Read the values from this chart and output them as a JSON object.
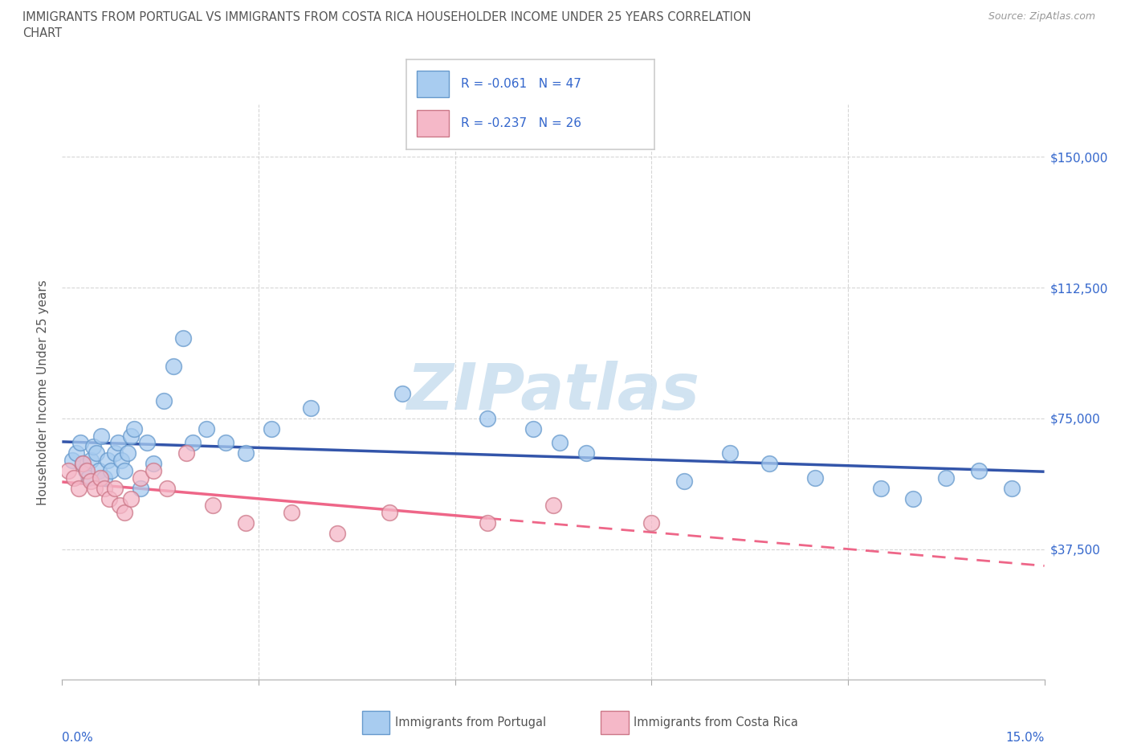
{
  "title_line1": "IMMIGRANTS FROM PORTUGAL VS IMMIGRANTS FROM COSTA RICA HOUSEHOLDER INCOME UNDER 25 YEARS CORRELATION",
  "title_line2": "CHART",
  "source": "Source: ZipAtlas.com",
  "ylabel": "Householder Income Under 25 years",
  "xlim": [
    0.0,
    15.0
  ],
  "ylim": [
    0,
    165000
  ],
  "yticks": [
    37500,
    75000,
    112500,
    150000
  ],
  "ytick_labels": [
    "$37,500",
    "$75,000",
    "$112,500",
    "$150,000"
  ],
  "legend1_text": "R = -0.061   N = 47",
  "legend2_text": "R = -0.237   N = 26",
  "portugal_scatter_color": "#a8ccf0",
  "portugal_scatter_edge": "#6699cc",
  "portugal_line_color": "#3355aa",
  "costa_rica_scatter_color": "#f5b8c8",
  "costa_rica_scatter_edge": "#cc7788",
  "costa_rica_line_color": "#ee6688",
  "grid_color": "#cccccc",
  "label_color": "#3366cc",
  "text_color": "#555555",
  "watermark_color": "#cce0f0",
  "portugal_x": [
    0.15,
    0.22,
    0.28,
    0.32,
    0.36,
    0.4,
    0.44,
    0.48,
    0.52,
    0.56,
    0.6,
    0.65,
    0.7,
    0.75,
    0.8,
    0.85,
    0.9,
    0.95,
    1.0,
    1.05,
    1.1,
    1.2,
    1.3,
    1.4,
    1.55,
    1.7,
    1.85,
    2.0,
    2.2,
    2.5,
    2.8,
    3.2,
    3.8,
    5.2,
    6.5,
    7.2,
    7.6,
    8.0,
    9.5,
    10.2,
    10.8,
    11.5,
    12.5,
    13.0,
    13.5,
    14.0,
    14.5
  ],
  "portugal_y": [
    63000,
    65000,
    68000,
    62000,
    60000,
    58000,
    63000,
    67000,
    65000,
    60000,
    70000,
    58000,
    63000,
    60000,
    65000,
    68000,
    63000,
    60000,
    65000,
    70000,
    72000,
    55000,
    68000,
    62000,
    80000,
    90000,
    98000,
    68000,
    72000,
    68000,
    65000,
    72000,
    78000,
    82000,
    75000,
    72000,
    68000,
    65000,
    57000,
    65000,
    62000,
    58000,
    55000,
    52000,
    58000,
    60000,
    55000
  ],
  "costa_rica_x": [
    0.1,
    0.18,
    0.25,
    0.32,
    0.38,
    0.44,
    0.5,
    0.58,
    0.65,
    0.72,
    0.8,
    0.88,
    0.95,
    1.05,
    1.2,
    1.4,
    1.6,
    1.9,
    2.3,
    2.8,
    3.5,
    4.2,
    5.0,
    6.5,
    7.5,
    9.0
  ],
  "costa_rica_y": [
    60000,
    58000,
    55000,
    62000,
    60000,
    57000,
    55000,
    58000,
    55000,
    52000,
    55000,
    50000,
    48000,
    52000,
    58000,
    60000,
    55000,
    65000,
    50000,
    45000,
    48000,
    42000,
    48000,
    45000,
    50000,
    45000
  ]
}
